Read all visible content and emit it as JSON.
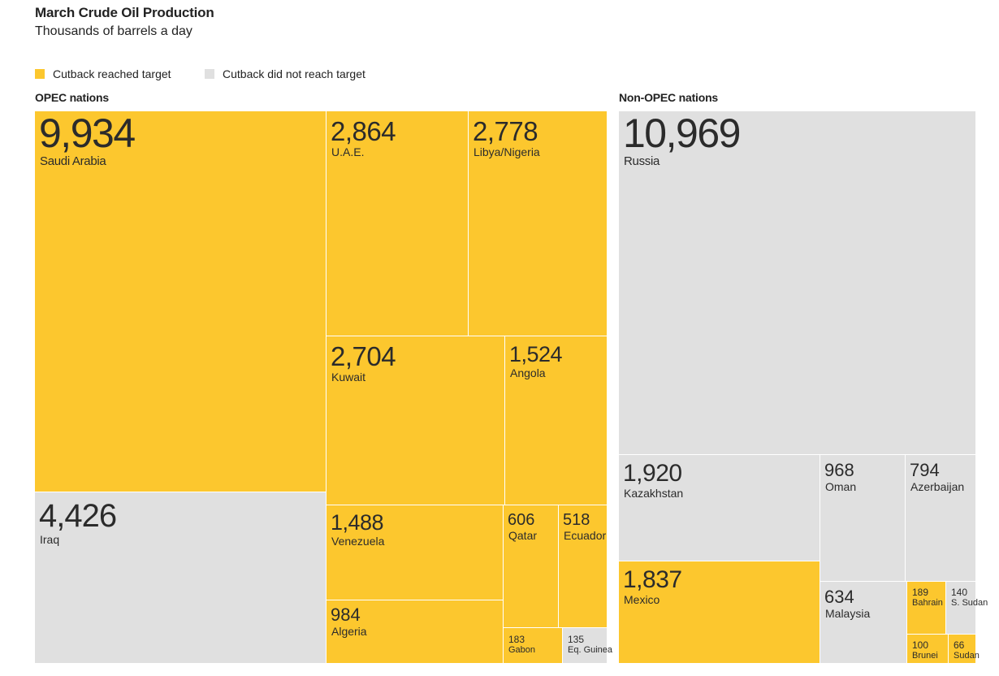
{
  "chart_data": {
    "type": "treemap",
    "title": "March Crude Oil Production",
    "subtitle": "Thousands of barrels a day",
    "units": "thousand barrels per day",
    "legend": {
      "placement": "top-left",
      "entries": [
        {
          "key": "reached",
          "label": "Cutback reached target",
          "color": "#fcc72e"
        },
        {
          "key": "not_reached",
          "label": "Cutback did not reach target",
          "color": "#e0e0e0"
        }
      ]
    },
    "groups": [
      {
        "name": "OPEC nations",
        "items": [
          {
            "name": "Saudi Arabia",
            "value": 9934,
            "label": "9,934",
            "status": "reached"
          },
          {
            "name": "Iraq",
            "value": 4426,
            "label": "4,426",
            "status": "not_reached"
          },
          {
            "name": "U.A.E.",
            "value": 2864,
            "label": "2,864",
            "status": "reached"
          },
          {
            "name": "Libya/Nigeria",
            "value": 2778,
            "label": "2,778",
            "status": "reached"
          },
          {
            "name": "Kuwait",
            "value": 2704,
            "label": "2,704",
            "status": "reached"
          },
          {
            "name": "Angola",
            "value": 1524,
            "label": "1,524",
            "status": "reached"
          },
          {
            "name": "Venezuela",
            "value": 1488,
            "label": "1,488",
            "status": "reached"
          },
          {
            "name": "Algeria",
            "value": 984,
            "label": "984",
            "status": "reached"
          },
          {
            "name": "Qatar",
            "value": 606,
            "label": "606",
            "status": "reached"
          },
          {
            "name": "Ecuador",
            "value": 518,
            "label": "518",
            "status": "reached"
          },
          {
            "name": "Gabon",
            "value": 183,
            "label": "183",
            "status": "reached"
          },
          {
            "name": "Eq. Guinea",
            "value": 135,
            "label": "135",
            "status": "not_reached"
          }
        ]
      },
      {
        "name": "Non-OPEC nations",
        "items": [
          {
            "name": "Russia",
            "value": 10969,
            "label": "10,969",
            "status": "not_reached"
          },
          {
            "name": "Kazakhstan",
            "value": 1920,
            "label": "1,920",
            "status": "not_reached"
          },
          {
            "name": "Mexico",
            "value": 1837,
            "label": "1,837",
            "status": "reached"
          },
          {
            "name": "Oman",
            "value": 968,
            "label": "968",
            "status": "not_reached"
          },
          {
            "name": "Azerbaijan",
            "value": 794,
            "label": "794",
            "status": "not_reached"
          },
          {
            "name": "Malaysia",
            "value": 634,
            "label": "634",
            "status": "not_reached"
          },
          {
            "name": "Bahrain",
            "value": 189,
            "label": "189",
            "status": "reached"
          },
          {
            "name": "S. Sudan",
            "value": 140,
            "label": "140",
            "status": "not_reached"
          },
          {
            "name": "Brunei",
            "value": 100,
            "label": "100",
            "status": "reached"
          },
          {
            "name": "Sudan",
            "value": 66,
            "label": "66",
            "status": "reached"
          }
        ]
      }
    ]
  }
}
